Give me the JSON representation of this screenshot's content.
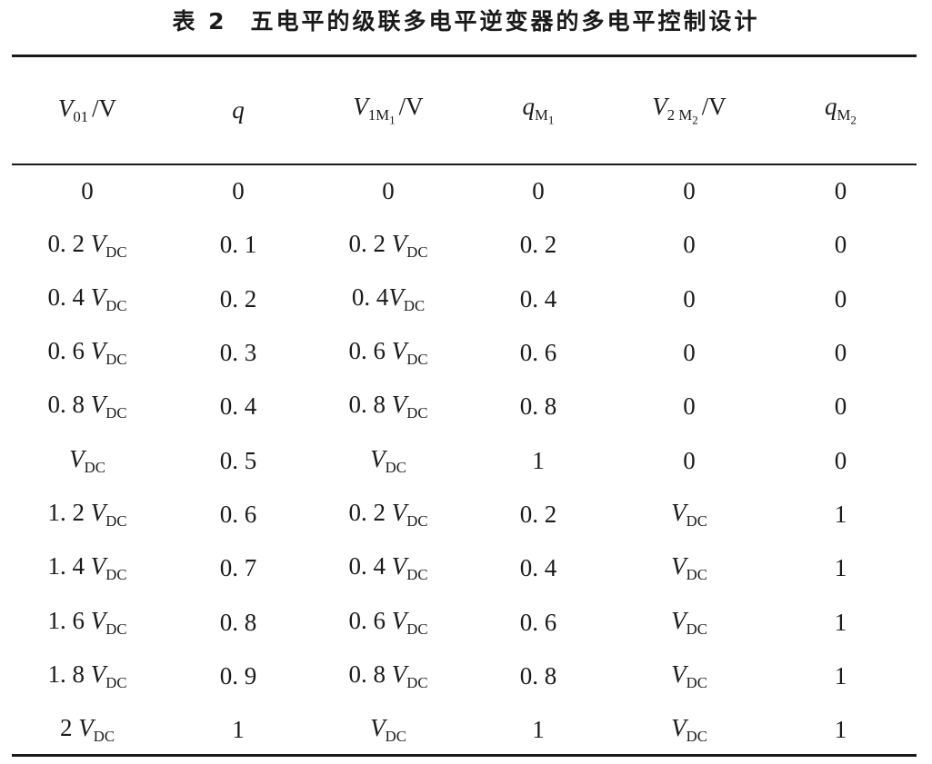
{
  "caption": {
    "label": "表 2",
    "title": "五电平的级联多电平逆变器的多电平控制设计"
  },
  "table": {
    "headers": [
      {
        "main": "V",
        "sub": "01",
        "subsub": "",
        "unit": "/V"
      },
      {
        "main": "q",
        "sub": "",
        "subsub": "",
        "unit": ""
      },
      {
        "main": "V",
        "sub": "1M",
        "subsub": "1",
        "unit": "/V"
      },
      {
        "main": "q",
        "sub": "M",
        "subsub": "1",
        "unit": ""
      },
      {
        "main": "V",
        "sub": "2 M",
        "subsub": "2",
        "unit": "/V"
      },
      {
        "main": "q",
        "sub": "M",
        "subsub": "2",
        "unit": ""
      }
    ],
    "rows": [
      [
        {
          "n": "0",
          "v": false
        },
        {
          "n": "0",
          "v": false
        },
        {
          "n": "0",
          "v": false
        },
        {
          "n": "0",
          "v": false
        },
        {
          "n": "0",
          "v": false
        },
        {
          "n": "0",
          "v": false
        }
      ],
      [
        {
          "n": "0. 2 ",
          "v": true
        },
        {
          "n": "0. 1",
          "v": false
        },
        {
          "n": "0. 2 ",
          "v": true
        },
        {
          "n": "0. 2",
          "v": false
        },
        {
          "n": "0",
          "v": false
        },
        {
          "n": "0",
          "v": false
        }
      ],
      [
        {
          "n": "0. 4 ",
          "v": true
        },
        {
          "n": "0. 2",
          "v": false
        },
        {
          "n": "0. 4",
          "v": true
        },
        {
          "n": "0. 4",
          "v": false
        },
        {
          "n": "0",
          "v": false
        },
        {
          "n": "0",
          "v": false
        }
      ],
      [
        {
          "n": "0. 6 ",
          "v": true
        },
        {
          "n": "0. 3",
          "v": false
        },
        {
          "n": "0. 6 ",
          "v": true
        },
        {
          "n": "0. 6",
          "v": false
        },
        {
          "n": "0",
          "v": false
        },
        {
          "n": "0",
          "v": false
        }
      ],
      [
        {
          "n": "0. 8 ",
          "v": true
        },
        {
          "n": "0. 4",
          "v": false
        },
        {
          "n": "0. 8 ",
          "v": true
        },
        {
          "n": "0. 8",
          "v": false
        },
        {
          "n": "0",
          "v": false
        },
        {
          "n": "0",
          "v": false
        }
      ],
      [
        {
          "n": "",
          "v": true
        },
        {
          "n": "0. 5",
          "v": false
        },
        {
          "n": "",
          "v": true
        },
        {
          "n": "1",
          "v": false
        },
        {
          "n": "0",
          "v": false
        },
        {
          "n": "0",
          "v": false
        }
      ],
      [
        {
          "n": "1. 2 ",
          "v": true
        },
        {
          "n": "0. 6",
          "v": false
        },
        {
          "n": "0. 2 ",
          "v": true
        },
        {
          "n": "0. 2",
          "v": false
        },
        {
          "n": "",
          "v": true
        },
        {
          "n": "1",
          "v": false
        }
      ],
      [
        {
          "n": "1. 4 ",
          "v": true
        },
        {
          "n": "0. 7",
          "v": false
        },
        {
          "n": "0. 4 ",
          "v": true
        },
        {
          "n": "0. 4",
          "v": false
        },
        {
          "n": "",
          "v": true
        },
        {
          "n": "1",
          "v": false
        }
      ],
      [
        {
          "n": "1. 6 ",
          "v": true
        },
        {
          "n": "0. 8",
          "v": false
        },
        {
          "n": "0. 6 ",
          "v": true
        },
        {
          "n": "0. 6",
          "v": false
        },
        {
          "n": "",
          "v": true
        },
        {
          "n": "1",
          "v": false
        }
      ],
      [
        {
          "n": "1. 8 ",
          "v": true
        },
        {
          "n": "0. 9",
          "v": false
        },
        {
          "n": "0. 8 ",
          "v": true
        },
        {
          "n": "0. 8",
          "v": false
        },
        {
          "n": "",
          "v": true
        },
        {
          "n": "1",
          "v": false
        }
      ],
      [
        {
          "n": "2 ",
          "v": true
        },
        {
          "n": "1",
          "v": false
        },
        {
          "n": "",
          "v": true
        },
        {
          "n": "1",
          "v": false
        },
        {
          "n": "",
          "v": true
        },
        {
          "n": "1",
          "v": false
        }
      ]
    ],
    "vdc": {
      "main": "V",
      "sub": "DC"
    }
  }
}
